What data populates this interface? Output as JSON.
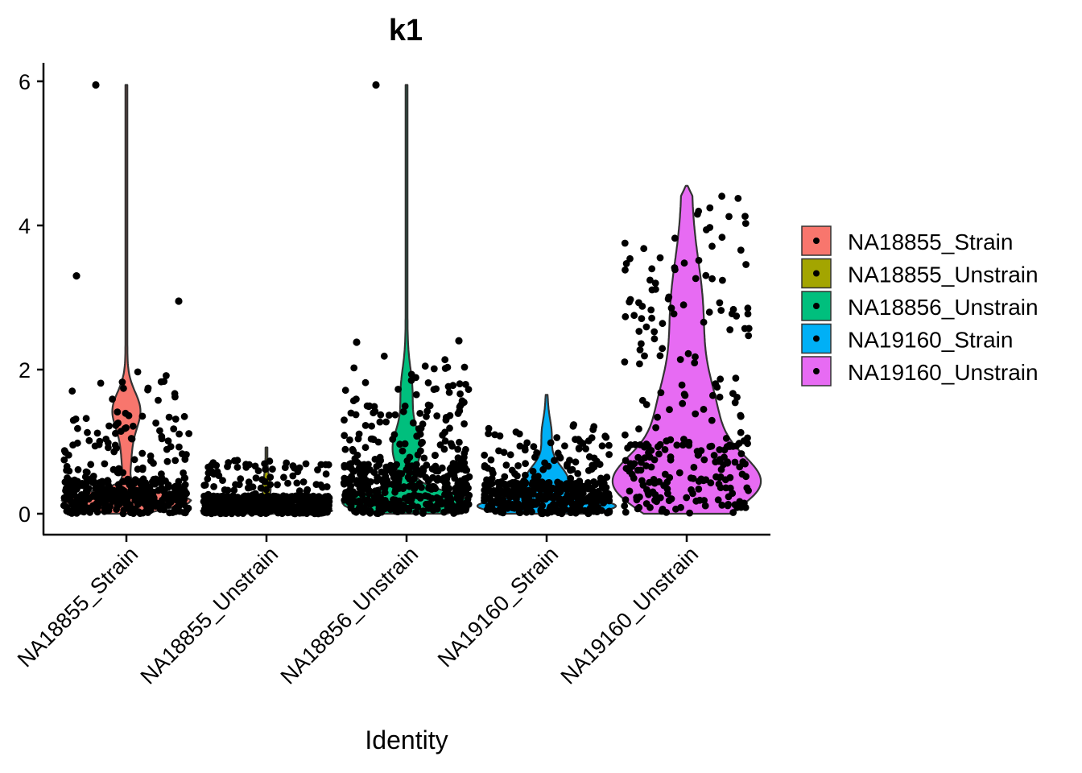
{
  "chart_data": {
    "type": "violin",
    "title": "k1",
    "xlabel": "Identity",
    "ylabel": "",
    "ylim": [
      -0.28,
      6.3
    ],
    "yticks": [
      0,
      2,
      4,
      6
    ],
    "categories": [
      "NA18855_Strain",
      "NA18855_Unstrain",
      "NA18856_Unstrain",
      "NA19160_Strain",
      "NA19160_Unstrain"
    ],
    "series": [
      {
        "name": "NA18855_Strain",
        "color": "#F8766D",
        "max": 5.95,
        "n": 420,
        "outliers": [
          5.95,
          3.3,
          2.95
        ]
      },
      {
        "name": "NA18855_Unstrain",
        "color": "#A3A500",
        "max": 0.92,
        "n": 520,
        "outliers": []
      },
      {
        "name": "NA18856_Unstrain",
        "color": "#00BF7D",
        "max": 5.95,
        "n": 480,
        "outliers": [
          5.95,
          2.38,
          2.4
        ]
      },
      {
        "name": "NA19160_Strain",
        "color": "#00B0F6",
        "max": 1.65,
        "n": 430,
        "outliers": []
      },
      {
        "name": "NA19160_Unstrain",
        "color": "#E76BF3",
        "max": 4.55,
        "n": 260,
        "outliers": []
      }
    ],
    "legend_position": "right",
    "grid": false
  }
}
